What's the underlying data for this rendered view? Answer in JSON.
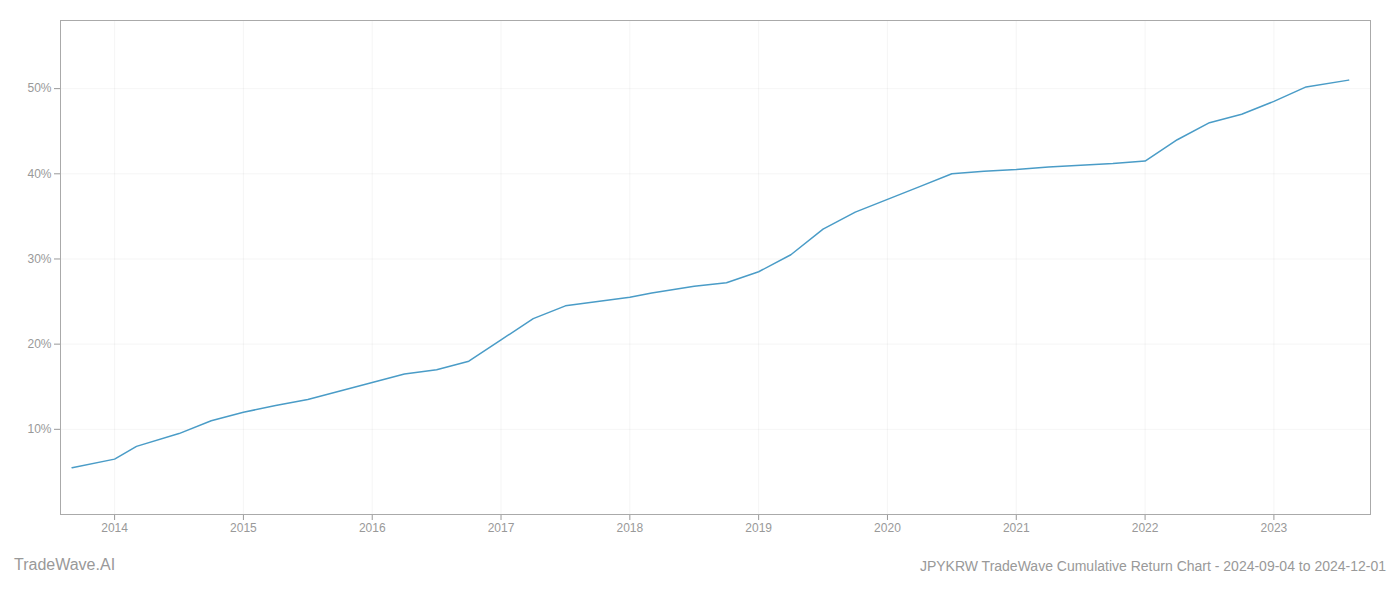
{
  "chart_data": {
    "type": "line",
    "title": "JPYKRW TradeWave Cumulative Return Chart - 2024-09-04 to 2024-12-01",
    "annotations": [
      "TradeWave.AI"
    ],
    "color": "#4a9cc7",
    "grid": true,
    "x": [
      2013.67,
      2014.0,
      2014.17,
      2014.5,
      2014.75,
      2015.0,
      2015.25,
      2015.5,
      2015.75,
      2016.0,
      2016.25,
      2016.5,
      2016.75,
      2017.0,
      2017.25,
      2017.5,
      2017.75,
      2018.0,
      2018.17,
      2018.5,
      2018.75,
      2019.0,
      2019.25,
      2019.5,
      2019.75,
      2020.0,
      2020.25,
      2020.5,
      2020.75,
      2021.0,
      2021.25,
      2021.5,
      2021.75,
      2022.0,
      2022.25,
      2022.5,
      2022.75,
      2023.0,
      2023.25,
      2023.58
    ],
    "values": [
      5.5,
      6.5,
      8.0,
      9.5,
      11.0,
      12.0,
      12.8,
      13.5,
      14.5,
      15.5,
      16.5,
      17.0,
      18.0,
      20.5,
      23.0,
      24.5,
      25.0,
      25.5,
      26.0,
      26.8,
      27.2,
      28.5,
      30.5,
      33.5,
      35.5,
      37.0,
      38.5,
      40.0,
      40.3,
      40.5,
      40.8,
      41.0,
      41.2,
      41.5,
      44.0,
      46.0,
      47.0,
      48.5,
      50.2,
      51.0
    ],
    "xlim": [
      2013.58,
      2023.75
    ],
    "xticks": [
      2014,
      2015,
      2016,
      2017,
      2018,
      2019,
      2020,
      2021,
      2022,
      2023
    ],
    "ylim": [
      0,
      58
    ],
    "yticks": [
      {
        "value": 10,
        "label": "10%"
      },
      {
        "value": 20,
        "label": "20%"
      },
      {
        "value": 30,
        "label": "30%"
      },
      {
        "value": 40,
        "label": "40%"
      },
      {
        "value": 50,
        "label": "50%"
      }
    ]
  }
}
